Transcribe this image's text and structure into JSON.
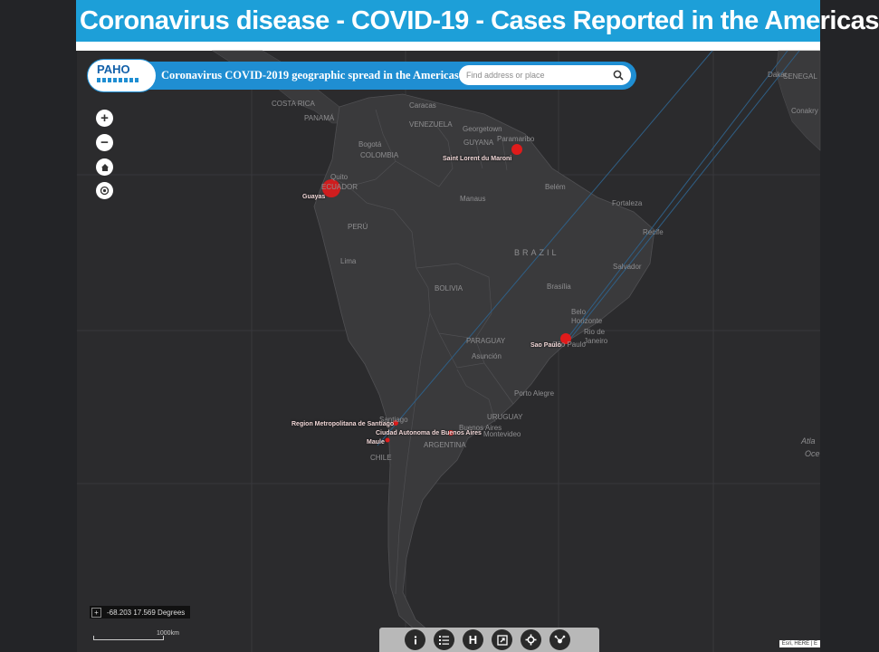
{
  "slide": {
    "title": "Coronavirus disease - COVID-19 - Cases Reported in the Americas"
  },
  "app": {
    "logo_text": "PAHO",
    "title": "Coronavirus COVID-2019 geographic spread in the Americas",
    "search_placeholder": "Find address or place"
  },
  "map_controls": {
    "zoom_in": "+",
    "zoom_out": "−",
    "home_icon": "home-icon",
    "locate_icon": "locate-icon"
  },
  "map_labels": {
    "costa_rica": "COSTA RICA",
    "panama": "PANAMÁ",
    "caracas": "Caracas",
    "venezuela": "VENEZUELA",
    "georgetown": "Georgetown",
    "guyana": "GUYANA",
    "paramaribo": "Paramaribo",
    "bogota": "Bogotá",
    "colombia": "COLOMBIA",
    "quito": "Quito",
    "ecuador": "ECUADOR",
    "belem": "Belém",
    "manaus": "Manaus",
    "fortaleza": "Fortaleza",
    "recife": "Recife",
    "peru": "PERÚ",
    "brazil": "BRAZIL",
    "lima": "Lima",
    "salvador": "Salvador",
    "bolivia": "BOLIVIA",
    "brasilia": "Brasília",
    "belo_horizonte": "Belo Horizonte",
    "rio": "Rio de Janeiro",
    "sao_paulo_city": "São Paulo",
    "paraguay": "PARAGUAY",
    "asuncion": "Asunción",
    "porto_alegre": "Porto Alegre",
    "uruguay": "URUGUAY",
    "santiago": "Santiago",
    "buenos_aires": "Buenos Aires",
    "montevideo": "Montevideo",
    "argentina": "ARGENTINA",
    "chile": "CHILE",
    "dakar": "Dakar",
    "senegal": "SENEGAL",
    "conakry": "Conakry",
    "atlantic": "Atla",
    "ocean": "Oce"
  },
  "case_labels": {
    "saint_laurent": "Saint Lorent du Maroni",
    "guayas": "Guayas",
    "sao_paulo": "Sao Paulo",
    "santiago_region": "Region Metropolitana de Santiago",
    "buenos_aires_region": "Ciudad Autonoma de Buenos Aires",
    "maule": "Maule"
  },
  "status": {
    "coordinates": "-68.203 17.569 Degrees",
    "scale": "1000km",
    "attribution": "Esri, HERE | E"
  },
  "toolbar": {
    "icons": [
      "info-icon",
      "legend-icon",
      "h-icon",
      "share-icon",
      "settings-icon",
      "tools-icon"
    ],
    "h_label": "H"
  },
  "colors": {
    "title_bar": "#1d9fd8",
    "header_pill": "#1f8ed2",
    "case_marker": "#e01b1b",
    "map_background": "#2b2b2d",
    "land": "#3a3a3c"
  }
}
